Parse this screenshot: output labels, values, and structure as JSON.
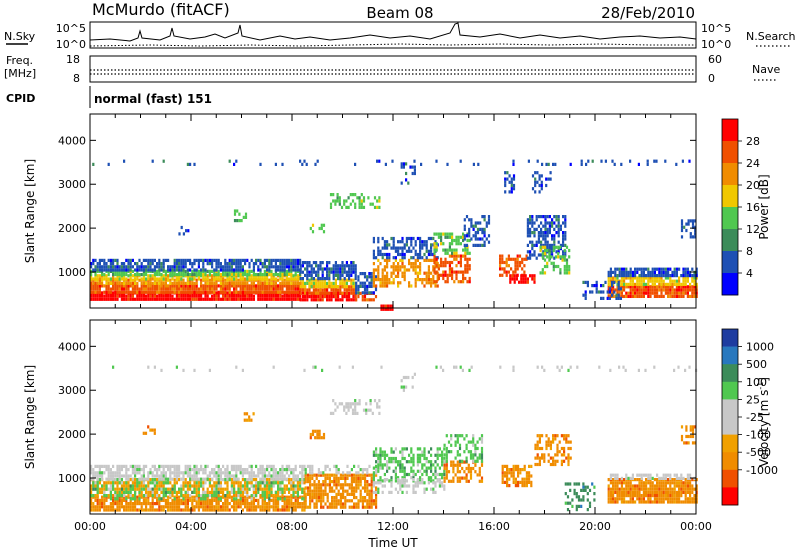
{
  "header": {
    "title": "McMurdo (fitACF)",
    "beam": "Beam 08",
    "date": "28/Feb/2010"
  },
  "top_panel": {
    "nsky_label": "N.Sky",
    "nsearch_label": "N.Search",
    "freq_label": "Freq.",
    "freq_unit": "[MHz]",
    "nave_label": "Nave",
    "cpid_label": "CPID",
    "cpid_text": "normal (fast) 151",
    "noise_ticks": [
      "10^5",
      "10^0"
    ],
    "freq_ticks": [
      "18",
      "8"
    ],
    "nave_ticks": [
      "60",
      "0"
    ]
  },
  "colors": {
    "power": [
      "#0000ff",
      "#1e50b4",
      "#3c8c5a",
      "#50c850",
      "#f0c800",
      "#f08c00",
      "#f05000",
      "#ff0000"
    ],
    "velocity": [
      "#1e3ca0",
      "#2878be",
      "#3c8c5a",
      "#50c850",
      "#c8c8c8",
      "#c8c8c8",
      "#f0a000",
      "#f08c00",
      "#f05000",
      "#ff0000"
    ]
  },
  "chart_data": [
    {
      "type": "heatmap",
      "name": "power",
      "ylabel": "Slant Range [km]",
      "xlabel": "",
      "colorbar_label": "Power [dB]",
      "colorbar_ticks": [
        "4",
        "8",
        "12",
        "16",
        "20",
        "24",
        "28"
      ],
      "y_ticks": [
        "1000",
        "2000",
        "3000",
        "4000"
      ],
      "x_ticks": [],
      "x_range_hours": [
        0,
        24
      ],
      "y_range_km": [
        180,
        4600
      ],
      "regions": [
        {
          "t0": 0.0,
          "t1": 8.3,
          "r0": 350,
          "r1": 560,
          "c": 7,
          "d": 0.95
        },
        {
          "t0": 0.0,
          "t1": 8.3,
          "r0": 560,
          "r1": 720,
          "c": 6,
          "d": 0.95
        },
        {
          "t0": 0.0,
          "t1": 8.3,
          "r0": 720,
          "r1": 850,
          "c": 5,
          "d": 0.9
        },
        {
          "t0": 0.0,
          "t1": 8.3,
          "r0": 850,
          "r1": 950,
          "c": 4,
          "d": 0.85
        },
        {
          "t0": 0.0,
          "t1": 8.3,
          "r0": 950,
          "r1": 1050,
          "c": 3,
          "d": 0.85
        },
        {
          "t0": 0.0,
          "t1": 8.3,
          "r0": 1050,
          "r1": 1300,
          "c": 1,
          "d": 0.8
        },
        {
          "t0": 8.3,
          "t1": 10.5,
          "r0": 350,
          "r1": 550,
          "c": 7,
          "d": 0.9
        },
        {
          "t0": 8.3,
          "t1": 10.5,
          "r0": 550,
          "r1": 700,
          "c": 6,
          "d": 0.9
        },
        {
          "t0": 8.3,
          "t1": 10.5,
          "r0": 700,
          "r1": 850,
          "c": 4,
          "d": 0.85
        },
        {
          "t0": 8.3,
          "t1": 10.5,
          "r0": 850,
          "r1": 1250,
          "c": 1,
          "d": 0.75
        },
        {
          "t0": 10.5,
          "t1": 11.3,
          "r0": 350,
          "r1": 550,
          "c": 6,
          "d": 0.7
        },
        {
          "t0": 10.5,
          "t1": 11.3,
          "r0": 550,
          "r1": 1000,
          "c": 1,
          "d": 0.6
        },
        {
          "t0": 11.2,
          "t1": 13.8,
          "r0": 700,
          "r1": 1300,
          "c": 5,
          "d": 0.55
        },
        {
          "t0": 11.2,
          "t1": 13.8,
          "r0": 1300,
          "r1": 1800,
          "c": 1,
          "d": 0.5
        },
        {
          "t0": 13.6,
          "t1": 15.0,
          "r0": 800,
          "r1": 1400,
          "c": 6,
          "d": 0.6
        },
        {
          "t0": 13.6,
          "t1": 15.0,
          "r0": 1400,
          "r1": 1900,
          "c": 3,
          "d": 0.55
        },
        {
          "t0": 14.8,
          "t1": 15.8,
          "r0": 1600,
          "r1": 2300,
          "c": 1,
          "d": 0.45
        },
        {
          "t0": 16.2,
          "t1": 17.3,
          "r0": 900,
          "r1": 1400,
          "c": 6,
          "d": 0.6
        },
        {
          "t0": 16.6,
          "t1": 17.6,
          "r0": 750,
          "r1": 950,
          "c": 7,
          "d": 0.85
        },
        {
          "t0": 17.3,
          "t1": 18.8,
          "r0": 1300,
          "r1": 2300,
          "c": 1,
          "d": 0.55
        },
        {
          "t0": 17.8,
          "t1": 19.0,
          "r0": 1000,
          "r1": 1600,
          "c": 3,
          "d": 0.5
        },
        {
          "t0": 20.5,
          "t1": 24.0,
          "r0": 450,
          "r1": 700,
          "c": 6,
          "d": 0.9
        },
        {
          "t0": 20.5,
          "t1": 24.0,
          "r0": 700,
          "r1": 900,
          "c": 4,
          "d": 0.8
        },
        {
          "t0": 20.5,
          "t1": 24.0,
          "r0": 900,
          "r1": 1100,
          "c": 1,
          "d": 0.75
        },
        {
          "t0": 19.5,
          "t1": 21.0,
          "r0": 400,
          "r1": 800,
          "c": 1,
          "d": 0.4
        },
        {
          "t0": 9.5,
          "t1": 11.5,
          "r0": 2500,
          "r1": 2800,
          "c": 3,
          "d": 0.4
        },
        {
          "t0": 8.7,
          "t1": 9.3,
          "r0": 1900,
          "r1": 2100,
          "c": 3,
          "d": 0.4
        },
        {
          "t0": 5.7,
          "t1": 6.2,
          "r0": 2200,
          "r1": 2500,
          "c": 3,
          "d": 0.4
        },
        {
          "t0": 12.3,
          "t1": 12.9,
          "r0": 3000,
          "r1": 3500,
          "c": 1,
          "d": 0.3
        },
        {
          "t0": 16.4,
          "t1": 16.8,
          "r0": 2800,
          "r1": 3300,
          "c": 1,
          "d": 0.4
        },
        {
          "t0": 17.5,
          "t1": 18.2,
          "r0": 2800,
          "r1": 3300,
          "c": 1,
          "d": 0.3
        },
        {
          "t0": 23.4,
          "t1": 24.0,
          "r0": 1800,
          "r1": 2200,
          "c": 1,
          "d": 0.5
        },
        {
          "t0": 3.5,
          "t1": 4.0,
          "r0": 1850,
          "r1": 2050,
          "c": 1,
          "d": 0.4
        },
        {
          "t0": 11.5,
          "t1": 12.0,
          "r0": 170,
          "r1": 260,
          "c": 7,
          "d": 0.95
        },
        {
          "t0": 0.0,
          "t1": 24.0,
          "r0": 3450,
          "r1": 3560,
          "c": 1,
          "d": 0.12
        }
      ]
    },
    {
      "type": "heatmap",
      "name": "velocity",
      "ylabel": "Slant Range [km]",
      "xlabel": "Time UT",
      "colorbar_label": "Velocity [m s",
      "colorbar_superscript": "-1",
      "colorbar_label_end": "]",
      "colorbar_ticks": [
        "1000",
        "500",
        "100",
        "25",
        "-25",
        "-100",
        "-500",
        "-1000"
      ],
      "y_ticks": [
        "1000",
        "2000",
        "3000",
        "4000"
      ],
      "x_ticks": [
        "00:00",
        "04:00",
        "08:00",
        "12:00",
        "16:00",
        "20:00",
        "00:00"
      ],
      "x_range_hours": [
        0,
        24
      ],
      "y_range_km": [
        180,
        4600
      ],
      "regions": [
        {
          "t0": 0.0,
          "t1": 8.5,
          "r0": 300,
          "r1": 600,
          "c": 7,
          "d": 0.85
        },
        {
          "t0": 0.0,
          "t1": 8.5,
          "r0": 600,
          "r1": 1000,
          "c": 6,
          "d": 0.7
        },
        {
          "t0": 0.0,
          "t1": 8.5,
          "r0": 500,
          "r1": 1000,
          "c": 3,
          "d": 0.3
        },
        {
          "t0": 0.0,
          "t1": 8.5,
          "r0": 1000,
          "r1": 1300,
          "c": 4,
          "d": 0.7
        },
        {
          "t0": 8.5,
          "t1": 11.3,
          "r0": 300,
          "r1": 1100,
          "c": 7,
          "d": 0.75
        },
        {
          "t0": 8.5,
          "t1": 11.3,
          "r0": 1100,
          "r1": 1300,
          "c": 4,
          "d": 0.5
        },
        {
          "t0": 11.2,
          "t1": 14.0,
          "r0": 900,
          "r1": 1700,
          "c": 3,
          "d": 0.55
        },
        {
          "t0": 11.2,
          "t1": 14.0,
          "r0": 700,
          "r1": 1000,
          "c": 4,
          "d": 0.4
        },
        {
          "t0": 14.0,
          "t1": 15.5,
          "r0": 900,
          "r1": 1400,
          "c": 7,
          "d": 0.5
        },
        {
          "t0": 14.0,
          "t1": 15.5,
          "r0": 1400,
          "r1": 2000,
          "c": 3,
          "d": 0.45
        },
        {
          "t0": 16.3,
          "t1": 17.5,
          "r0": 800,
          "r1": 1300,
          "c": 7,
          "d": 0.65
        },
        {
          "t0": 17.6,
          "t1": 19.0,
          "r0": 1300,
          "r1": 2000,
          "c": 7,
          "d": 0.5
        },
        {
          "t0": 18.8,
          "t1": 20.0,
          "r0": 300,
          "r1": 900,
          "c": 2,
          "d": 0.3
        },
        {
          "t0": 20.5,
          "t1": 24.0,
          "r0": 450,
          "r1": 1000,
          "c": 7,
          "d": 0.85
        },
        {
          "t0": 20.5,
          "t1": 24.0,
          "r0": 1000,
          "r1": 1100,
          "c": 4,
          "d": 0.6
        },
        {
          "t0": 9.5,
          "t1": 11.5,
          "r0": 2500,
          "r1": 2800,
          "c": 4,
          "d": 0.4
        },
        {
          "t0": 6.0,
          "t1": 6.5,
          "r0": 2300,
          "r1": 2500,
          "c": 7,
          "d": 0.4
        },
        {
          "t0": 8.7,
          "t1": 9.3,
          "r0": 1900,
          "r1": 2100,
          "c": 7,
          "d": 0.5
        },
        {
          "t0": 2.0,
          "t1": 2.6,
          "r0": 2000,
          "r1": 2200,
          "c": 7,
          "d": 0.4
        },
        {
          "t0": 23.4,
          "t1": 24.0,
          "r0": 1800,
          "r1": 2200,
          "c": 7,
          "d": 0.5
        },
        {
          "t0": 12.3,
          "t1": 12.9,
          "r0": 3000,
          "r1": 3400,
          "c": 4,
          "d": 0.3
        },
        {
          "t0": 0.0,
          "t1": 24.0,
          "r0": 3450,
          "r1": 3560,
          "c": 4,
          "d": 0.12
        }
      ]
    }
  ]
}
